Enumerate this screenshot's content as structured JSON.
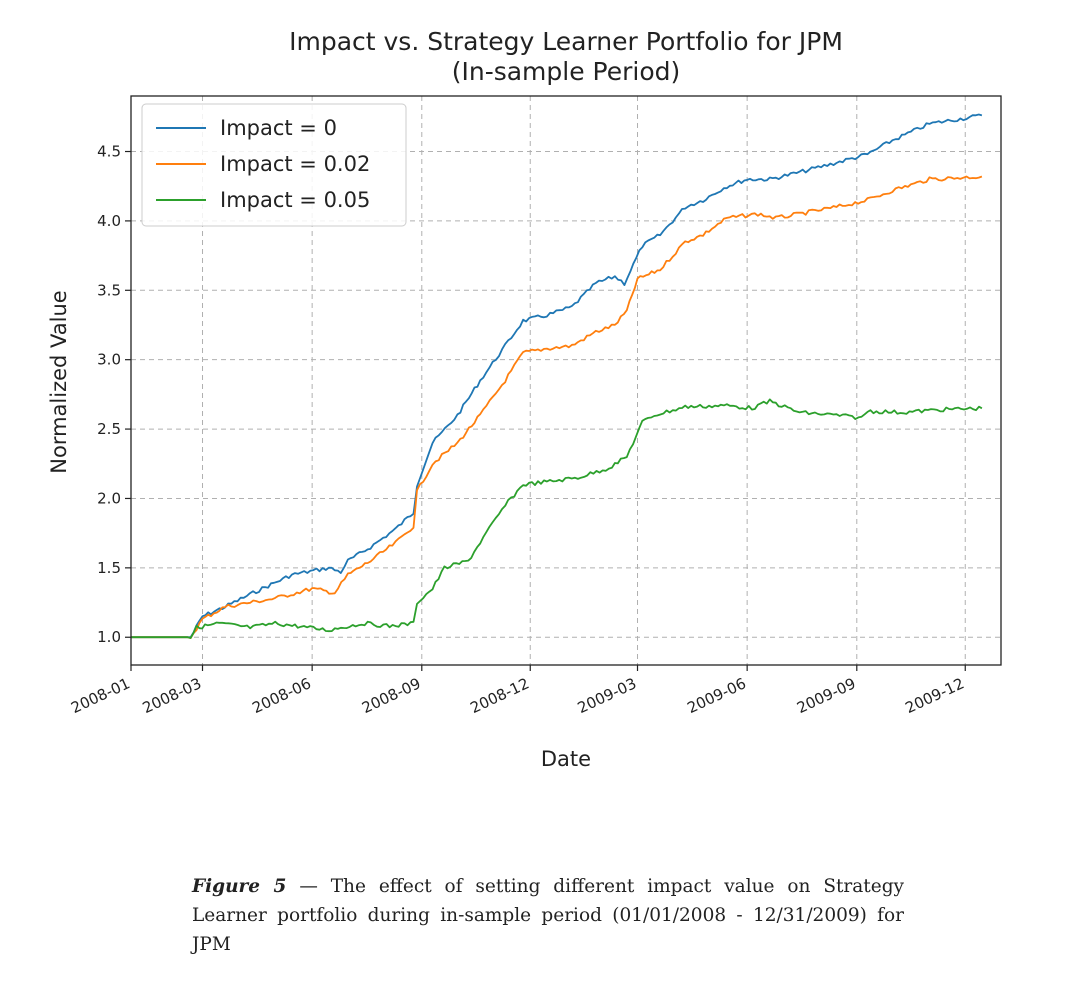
{
  "chart_data": {
    "type": "line",
    "title": "Impact vs. Strategy Learner Portfolio for JPM",
    "subtitle": "(In-sample Period)",
    "xlabel": "Date",
    "ylabel": "Normalized Value",
    "xlim": [
      "2008-01-01",
      "2009-12-31"
    ],
    "ylim": [
      0.8,
      4.9
    ],
    "x_ticks": [
      "2008-01",
      "2008-03",
      "2008-06",
      "2008-09",
      "2008-12",
      "2009-03",
      "2009-06",
      "2009-09",
      "2009-12"
    ],
    "y_ticks": [
      "1.0",
      "1.5",
      "2.0",
      "2.5",
      "3.0",
      "3.5",
      "4.0",
      "4.5"
    ],
    "grid": true,
    "legend": "top-left",
    "series": [
      {
        "name": "Impact = 0",
        "color": "#1f77b4",
        "points": [
          [
            "2008-01-01",
            1.0
          ],
          [
            "2008-02-10",
            1.0
          ],
          [
            "2008-02-20",
            1.0
          ],
          [
            "2008-03-01",
            1.15
          ],
          [
            "2008-03-20",
            1.22
          ],
          [
            "2008-04-15",
            1.33
          ],
          [
            "2008-05-15",
            1.45
          ],
          [
            "2008-06-15",
            1.5
          ],
          [
            "2008-06-25",
            1.47
          ],
          [
            "2008-07-01",
            1.55
          ],
          [
            "2008-07-20",
            1.65
          ],
          [
            "2008-08-10",
            1.78
          ],
          [
            "2008-08-25",
            1.9
          ],
          [
            "2008-08-28",
            2.1
          ],
          [
            "2008-09-10",
            2.4
          ],
          [
            "2008-10-01",
            2.6
          ],
          [
            "2008-10-20",
            2.85
          ],
          [
            "2008-11-10",
            3.1
          ],
          [
            "2008-11-25",
            3.28
          ],
          [
            "2008-12-15",
            3.32
          ],
          [
            "2009-01-05",
            3.38
          ],
          [
            "2009-01-25",
            3.55
          ],
          [
            "2009-02-10",
            3.6
          ],
          [
            "2009-02-18",
            3.55
          ],
          [
            "2009-03-05",
            3.82
          ],
          [
            "2009-03-20",
            3.9
          ],
          [
            "2009-04-10",
            4.1
          ],
          [
            "2009-04-25",
            4.15
          ],
          [
            "2009-05-15",
            4.25
          ],
          [
            "2009-06-01",
            4.3
          ],
          [
            "2009-06-20",
            4.3
          ],
          [
            "2009-07-15",
            4.35
          ],
          [
            "2009-08-15",
            4.42
          ],
          [
            "2009-09-10",
            4.48
          ],
          [
            "2009-10-01",
            4.58
          ],
          [
            "2009-11-01",
            4.7
          ],
          [
            "2009-12-15",
            4.76
          ]
        ]
      },
      {
        "name": "Impact = 0.02",
        "color": "#ff7f0e",
        "points": [
          [
            "2008-01-01",
            1.0
          ],
          [
            "2008-02-10",
            1.0
          ],
          [
            "2008-02-20",
            1.0
          ],
          [
            "2008-03-01",
            1.13
          ],
          [
            "2008-03-20",
            1.22
          ],
          [
            "2008-04-10",
            1.25
          ],
          [
            "2008-05-01",
            1.28
          ],
          [
            "2008-06-01",
            1.35
          ],
          [
            "2008-06-20",
            1.32
          ],
          [
            "2008-07-01",
            1.45
          ],
          [
            "2008-07-20",
            1.55
          ],
          [
            "2008-08-10",
            1.68
          ],
          [
            "2008-08-25",
            1.8
          ],
          [
            "2008-08-28",
            2.05
          ],
          [
            "2008-09-10",
            2.25
          ],
          [
            "2008-10-01",
            2.4
          ],
          [
            "2008-10-20",
            2.6
          ],
          [
            "2008-11-10",
            2.85
          ],
          [
            "2008-11-25",
            3.05
          ],
          [
            "2008-12-15",
            3.08
          ],
          [
            "2009-01-05",
            3.1
          ],
          [
            "2009-01-25",
            3.2
          ],
          [
            "2009-02-10",
            3.25
          ],
          [
            "2009-02-20",
            3.35
          ],
          [
            "2009-03-01",
            3.58
          ],
          [
            "2009-03-20",
            3.65
          ],
          [
            "2009-04-10",
            3.85
          ],
          [
            "2009-04-25",
            3.9
          ],
          [
            "2009-05-15",
            4.02
          ],
          [
            "2009-06-10",
            4.05
          ],
          [
            "2009-06-25",
            4.02
          ],
          [
            "2009-07-15",
            4.05
          ],
          [
            "2009-08-15",
            4.1
          ],
          [
            "2009-09-10",
            4.15
          ],
          [
            "2009-10-01",
            4.22
          ],
          [
            "2009-11-01",
            4.3
          ],
          [
            "2009-12-15",
            4.32
          ]
        ]
      },
      {
        "name": "Impact = 0.05",
        "color": "#2ca02c",
        "points": [
          [
            "2008-01-01",
            1.0
          ],
          [
            "2008-02-10",
            1.0
          ],
          [
            "2008-02-20",
            1.0
          ],
          [
            "2008-02-25",
            1.07
          ],
          [
            "2008-03-15",
            1.1
          ],
          [
            "2008-04-10",
            1.07
          ],
          [
            "2008-05-01",
            1.1
          ],
          [
            "2008-05-20",
            1.08
          ],
          [
            "2008-06-15",
            1.05
          ],
          [
            "2008-06-25",
            1.07
          ],
          [
            "2008-07-15",
            1.1
          ],
          [
            "2008-08-05",
            1.08
          ],
          [
            "2008-08-25",
            1.1
          ],
          [
            "2008-08-28",
            1.25
          ],
          [
            "2008-09-10",
            1.35
          ],
          [
            "2008-09-20",
            1.5
          ],
          [
            "2008-10-10",
            1.55
          ],
          [
            "2008-10-25",
            1.75
          ],
          [
            "2008-11-10",
            1.95
          ],
          [
            "2008-11-25",
            2.1
          ],
          [
            "2008-12-15",
            2.12
          ],
          [
            "2009-01-10",
            2.15
          ],
          [
            "2009-02-05",
            2.22
          ],
          [
            "2009-02-20",
            2.3
          ],
          [
            "2009-03-05",
            2.55
          ],
          [
            "2009-03-15",
            2.6
          ],
          [
            "2009-04-10",
            2.66
          ],
          [
            "2009-05-15",
            2.67
          ],
          [
            "2009-06-05",
            2.65
          ],
          [
            "2009-06-20",
            2.7
          ],
          [
            "2009-07-15",
            2.62
          ],
          [
            "2009-08-15",
            2.6
          ],
          [
            "2009-09-05",
            2.58
          ],
          [
            "2009-09-10",
            2.63
          ],
          [
            "2009-10-10",
            2.62
          ],
          [
            "2009-11-10",
            2.64
          ],
          [
            "2009-12-15",
            2.65
          ]
        ]
      }
    ]
  },
  "caption": {
    "figure_label": "Figure 5",
    "dash": "—",
    "text": "The effect of setting different impact value on Strategy Learner portfolio during in-sample period (01/01/2008 - 12/31/2009) for JPM"
  }
}
